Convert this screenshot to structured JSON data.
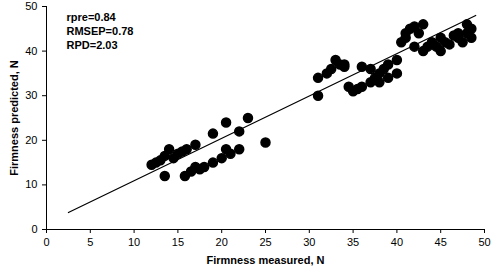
{
  "chart_data": {
    "type": "scatter",
    "x_label": "Firmness measured, N",
    "y_label": "Firmness predicted, N",
    "annotations": [
      "rpre=0.84",
      "RMSEP=0.78",
      "RPD=2.03"
    ],
    "color": "#000000",
    "marker": "circle",
    "grid": false,
    "xlim": [
      0,
      50
    ],
    "xticks": [
      0,
      5,
      10,
      15,
      20,
      25,
      30,
      35,
      40,
      45,
      50
    ],
    "ylim": [
      0,
      50
    ],
    "yticks": [
      0,
      10,
      20,
      30,
      40,
      50
    ],
    "x": [
      12,
      12.5,
      13,
      13.5,
      13.5,
      14,
      14.5,
      15,
      15.5,
      16,
      15.8,
      16.5,
      17,
      17,
      17.5,
      18,
      19,
      19,
      20,
      20.5,
      20.5,
      21,
      22,
      22,
      23,
      25,
      31,
      31,
      32,
      32.5,
      33,
      33.5,
      34,
      34,
      34.5,
      35,
      35.5,
      36,
      36,
      37,
      37.5,
      37,
      38,
      38,
      38.5,
      39,
      39,
      40,
      40,
      40.5,
      41,
      41,
      41.5,
      42,
      42,
      42.5,
      43,
      43,
      43.5,
      44,
      44.5,
      45,
      45,
      45.5,
      46,
      46.5,
      47,
      47.5,
      48,
      48,
      48.5,
      48.5,
      47
    ],
    "values": [
      14.5,
      15,
      15.5,
      16.5,
      12,
      18,
      16,
      17,
      17.5,
      18,
      12,
      13,
      19,
      14,
      13.5,
      14,
      21.5,
      15,
      16,
      24,
      18,
      17,
      22,
      18,
      25,
      19.5,
      34,
      30,
      35,
      36,
      38,
      37,
      36.5,
      37,
      32,
      31,
      31.5,
      32,
      36.5,
      33,
      34,
      36,
      33,
      35,
      36,
      37,
      34,
      35,
      38,
      42,
      43,
      44,
      45,
      45.5,
      41,
      44,
      46,
      40,
      41,
      42,
      41,
      43,
      40,
      42,
      41.5,
      43.5,
      44,
      42,
      44,
      46,
      45,
      43,
      43
    ],
    "fit_line": {
      "x": [
        2.5,
        49
      ],
      "y": [
        3.8,
        48
      ]
    }
  }
}
